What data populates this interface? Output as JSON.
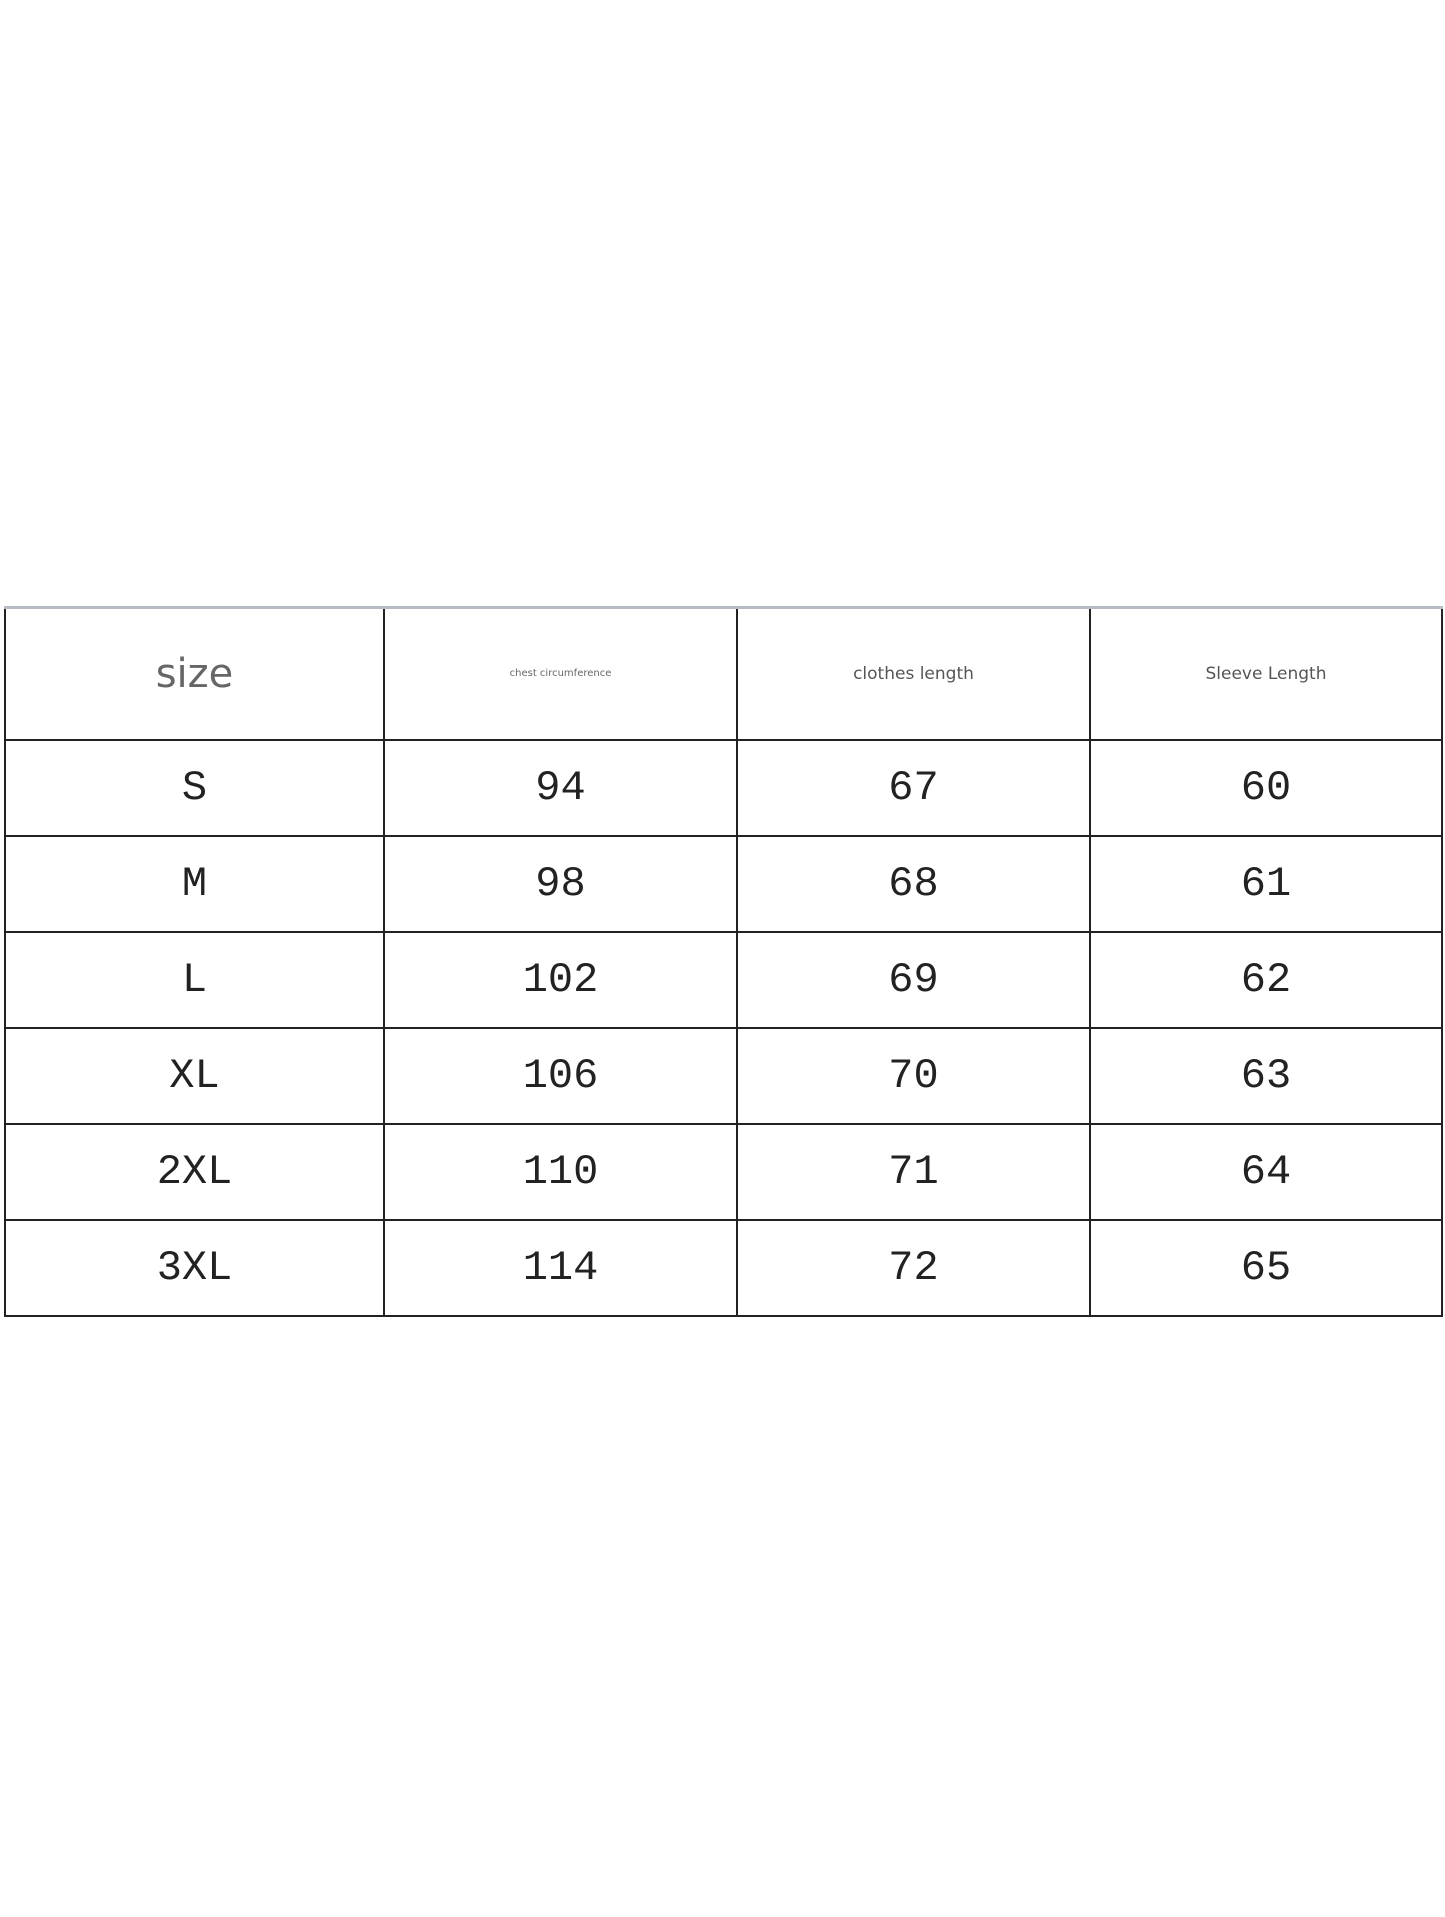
{
  "table": {
    "headers": [
      "size",
      "chest circumference",
      "clothes length",
      "Sleeve Length"
    ],
    "rows": [
      [
        "S",
        "94",
        "67",
        "60"
      ],
      [
        "M",
        "98",
        "68",
        "61"
      ],
      [
        "L",
        "102",
        "69",
        "62"
      ],
      [
        "XL",
        "106",
        "70",
        "63"
      ],
      [
        "2XL",
        "110",
        "71",
        "64"
      ],
      [
        "3XL",
        "114",
        "72",
        "65"
      ]
    ]
  }
}
